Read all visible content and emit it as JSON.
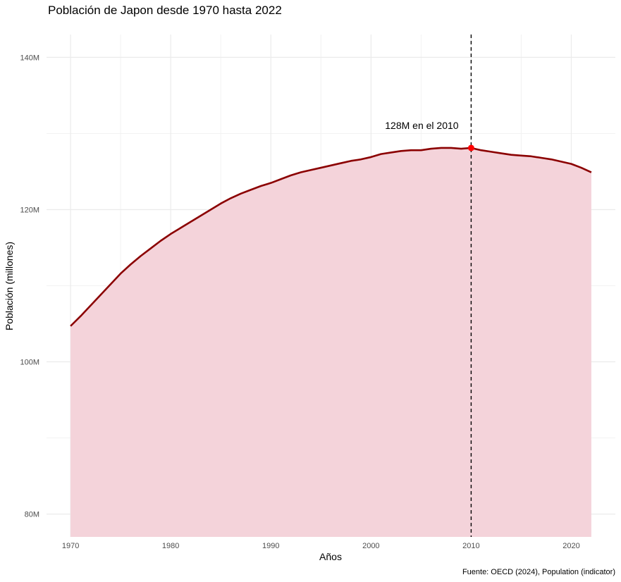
{
  "chart_data": {
    "type": "area",
    "title": "Población de Japon desde 1970 hasta 2022",
    "xlabel": "Años",
    "ylabel": "Población (millones)",
    "caption": "Fuente: OECD (2024), Population (indicator)",
    "xlim": [
      1970,
      2022
    ],
    "ylim": [
      77,
      143
    ],
    "x_ticks": [
      1970,
      1980,
      1990,
      2000,
      2010,
      2020
    ],
    "y_ticks": [
      80,
      100,
      120,
      140
    ],
    "y_tick_labels": [
      "80M",
      "100M",
      "120M",
      "140M"
    ],
    "grid": true,
    "colors": {
      "line": "#8B0000",
      "fill": "#F4D3DA",
      "highlight": "#FF0000",
      "vline": "#000000"
    },
    "series": [
      {
        "x": [
          1970,
          1971,
          1972,
          1973,
          1974,
          1975,
          1976,
          1977,
          1978,
          1979,
          1980,
          1981,
          1982,
          1983,
          1984,
          1985,
          1986,
          1987,
          1988,
          1989,
          1990,
          1991,
          1992,
          1993,
          1994,
          1995,
          1996,
          1997,
          1998,
          1999,
          2000,
          2001,
          2002,
          2003,
          2004,
          2005,
          2006,
          2007,
          2008,
          2009,
          2010,
          2011,
          2012,
          2013,
          2014,
          2015,
          2016,
          2017,
          2018,
          2019,
          2020,
          2021,
          2022
        ],
        "values": [
          104.7,
          106.0,
          107.4,
          108.8,
          110.2,
          111.6,
          112.8,
          113.9,
          114.9,
          115.9,
          116.8,
          117.6,
          118.4,
          119.2,
          120.0,
          120.8,
          121.5,
          122.1,
          122.6,
          123.1,
          123.5,
          124.0,
          124.5,
          124.9,
          125.2,
          125.5,
          125.8,
          126.1,
          126.4,
          126.6,
          126.9,
          127.3,
          127.5,
          127.7,
          127.8,
          127.8,
          128.0,
          128.1,
          128.1,
          128.0,
          128.1,
          127.8,
          127.6,
          127.4,
          127.2,
          127.1,
          127.0,
          126.8,
          126.6,
          126.3,
          126.0,
          125.5,
          124.9
        ]
      }
    ],
    "highlight": {
      "x": 2010,
      "y": 128.1,
      "label": "128M en el 2010"
    }
  }
}
